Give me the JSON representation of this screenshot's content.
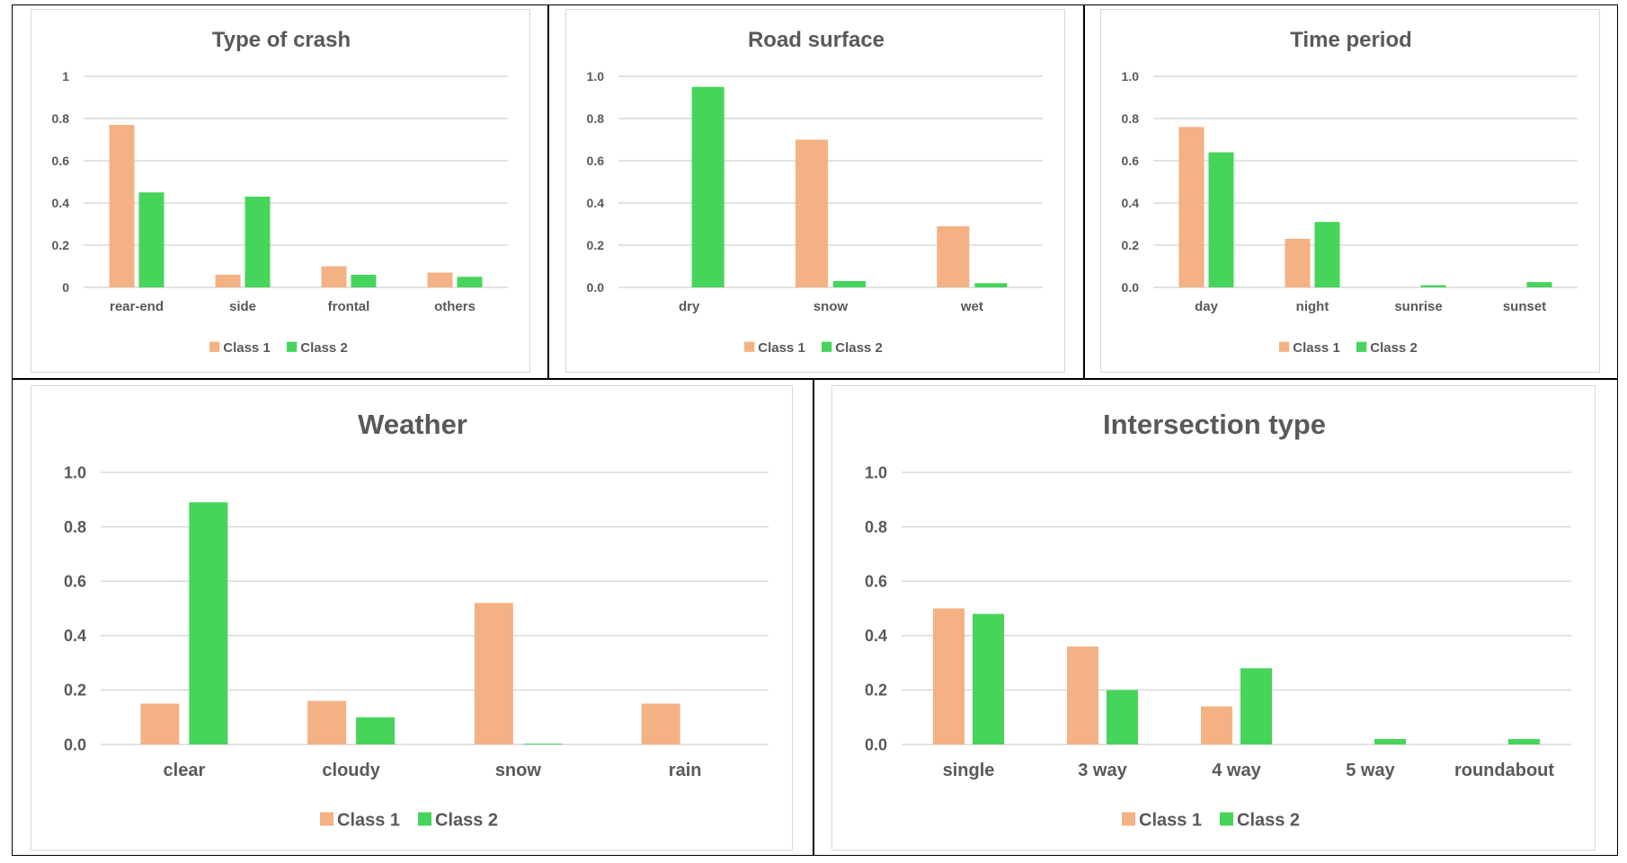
{
  "chart_data": [
    {
      "id": "type-of-crash",
      "type": "bar",
      "title": "Type of crash",
      "categories": [
        "rear-end",
        "side",
        "frontal",
        "others"
      ],
      "series": [
        {
          "name": "Class 1",
          "values": [
            0.77,
            0.06,
            0.1,
            0.07
          ]
        },
        {
          "name": "Class 2",
          "values": [
            0.45,
            0.43,
            0.06,
            0.05
          ]
        }
      ],
      "ylim": [
        0,
        1
      ],
      "yticks": [
        "0",
        "0.2",
        "0.4",
        "0.6",
        "0.8",
        "1"
      ],
      "grid": true,
      "legend": "bottom",
      "xlabel": "",
      "ylabel": ""
    },
    {
      "id": "road-surface",
      "type": "bar",
      "title": "Road surface",
      "categories": [
        "dry",
        "snow",
        "wet"
      ],
      "series": [
        {
          "name": "Class 1",
          "values": [
            0.0,
            0.7,
            0.29
          ]
        },
        {
          "name": "Class 2",
          "values": [
            0.95,
            0.03,
            0.02
          ]
        }
      ],
      "ylim": [
        0,
        1
      ],
      "yticks": [
        "0.0",
        "0.2",
        "0.4",
        "0.6",
        "0.8",
        "1.0"
      ],
      "grid": true,
      "legend": "bottom",
      "xlabel": "",
      "ylabel": ""
    },
    {
      "id": "time-period",
      "type": "bar",
      "title": "Time period",
      "categories": [
        "day",
        "night",
        "sunrise",
        "sunset"
      ],
      "series": [
        {
          "name": "Class 1",
          "values": [
            0.76,
            0.23,
            0.0,
            0.0
          ]
        },
        {
          "name": "Class 2",
          "values": [
            0.64,
            0.31,
            0.01,
            0.025
          ]
        }
      ],
      "ylim": [
        0,
        1
      ],
      "yticks": [
        "0.0",
        "0.2",
        "0.4",
        "0.6",
        "0.8",
        "1.0"
      ],
      "grid": true,
      "legend": "bottom",
      "xlabel": "",
      "ylabel": ""
    },
    {
      "id": "weather",
      "type": "bar",
      "title": "Weather",
      "categories": [
        "clear",
        "cloudy",
        "snow",
        "rain"
      ],
      "series": [
        {
          "name": "Class 1",
          "values": [
            0.15,
            0.16,
            0.52,
            0.15
          ]
        },
        {
          "name": "Class 2",
          "values": [
            0.89,
            0.1,
            0.003,
            0.0
          ]
        }
      ],
      "ylim": [
        0,
        1
      ],
      "yticks": [
        "0.0",
        "0.2",
        "0.4",
        "0.6",
        "0.8",
        "1.0"
      ],
      "grid": true,
      "legend": "bottom",
      "xlabel": "",
      "ylabel": ""
    },
    {
      "id": "intersection-type",
      "type": "bar",
      "title": "Intersection type",
      "categories": [
        "single",
        "3 way",
        "4 way",
        "5 way",
        "roundabout"
      ],
      "series": [
        {
          "name": "Class 1",
          "values": [
            0.5,
            0.36,
            0.14,
            0.0,
            0.0
          ]
        },
        {
          "name": "Class 2",
          "values": [
            0.48,
            0.2,
            0.28,
            0.02,
            0.02
          ]
        }
      ],
      "ylim": [
        0,
        1
      ],
      "yticks": [
        "0.0",
        "0.2",
        "0.4",
        "0.6",
        "0.8",
        "1.0"
      ],
      "grid": true,
      "legend": "bottom",
      "xlabel": "",
      "ylabel": ""
    }
  ],
  "colors": {
    "class1": "#f4b183",
    "class2": "#46d45b",
    "grid": "#d9d9d9",
    "text": "#595959"
  }
}
